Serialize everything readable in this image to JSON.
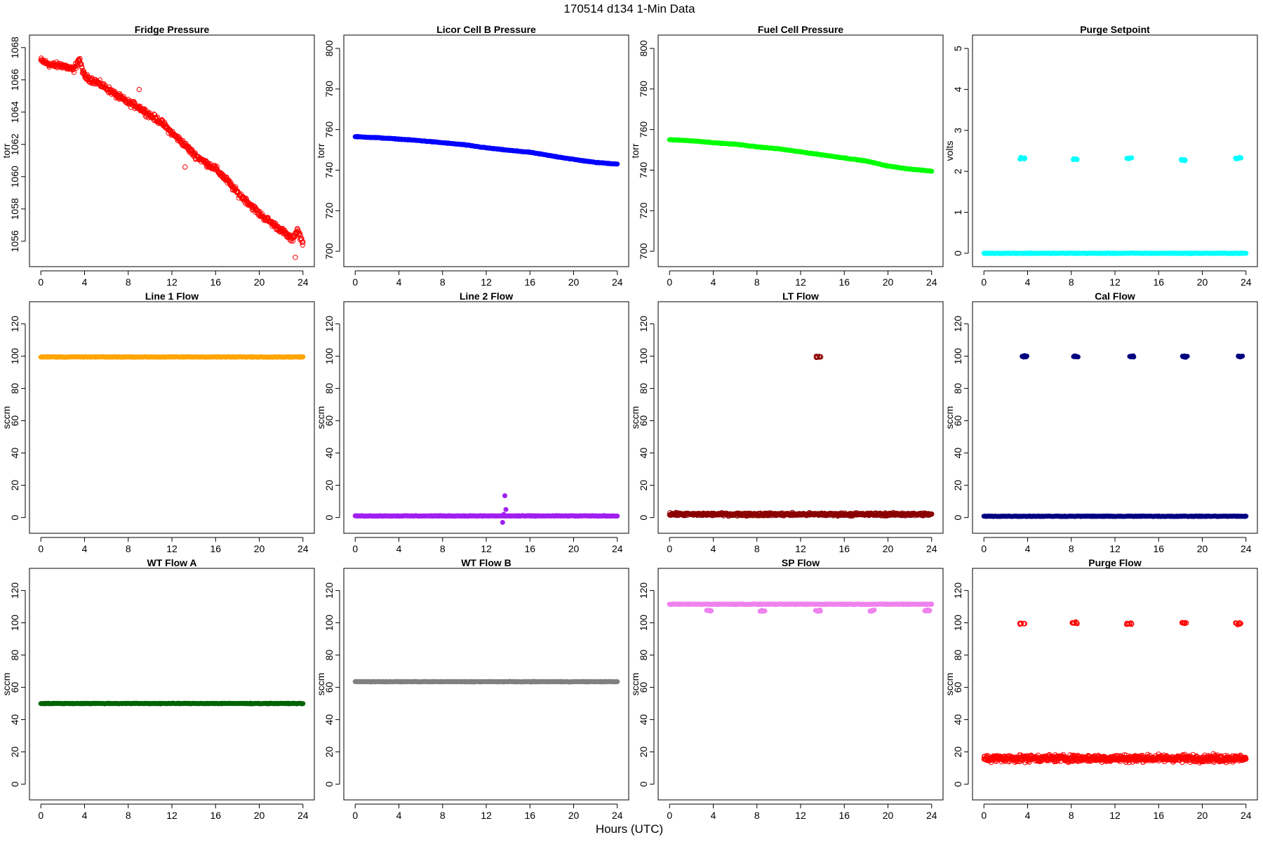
{
  "figure": {
    "title": "170514   d134   1-Min Data",
    "xlabel": "Hours (UTC)"
  },
  "chart_data": [
    {
      "type": "scatter",
      "title": "Fridge Pressure",
      "ylabel": "torr",
      "xlim": [
        0,
        24
      ],
      "ylim": [
        1055,
        1068.2
      ],
      "xticks": [
        0,
        4,
        8,
        12,
        16,
        20,
        24
      ],
      "yticks": [
        1056,
        1058,
        1060,
        1062,
        1064,
        1066,
        1068
      ],
      "color": "#ff0000",
      "marker": "open",
      "series": [
        {
          "x": [
            0,
            1,
            2,
            3,
            3.5,
            4,
            5,
            6,
            7,
            8,
            9,
            10,
            11,
            12,
            13,
            14,
            15,
            16,
            17,
            18,
            19,
            20,
            21,
            22,
            23,
            23.5,
            24
          ],
          "values": [
            1067.2,
            1066.9,
            1066.9,
            1066.6,
            1067.3,
            1066.2,
            1065.9,
            1065.5,
            1065.0,
            1064.6,
            1064.3,
            1063.8,
            1063.4,
            1062.7,
            1062.1,
            1061.4,
            1060.9,
            1060.5,
            1059.8,
            1059.0,
            1058.4,
            1057.7,
            1057.2,
            1056.7,
            1056.1,
            1056.7,
            1055.9
          ]
        }
      ],
      "outliers": [
        [
          23.3,
          1055.0
        ],
        [
          13.2,
          1060.6
        ],
        [
          9.0,
          1065.4
        ]
      ]
    },
    {
      "type": "scatter",
      "title": "Licor Cell B Pressure",
      "ylabel": "torr",
      "xlim": [
        0,
        24
      ],
      "ylim": [
        697,
        802
      ],
      "xticks": [
        0,
        4,
        8,
        12,
        16,
        20,
        24
      ],
      "yticks": [
        700,
        720,
        740,
        760,
        780,
        800
      ],
      "color": "#0000ff",
      "marker": "filled",
      "series": [
        {
          "x": [
            0,
            2,
            4,
            6,
            8,
            10,
            12,
            14,
            16,
            18,
            20,
            22,
            24
          ],
          "values": [
            756.5,
            756.0,
            755.3,
            754.5,
            753.5,
            752.5,
            751.0,
            749.8,
            748.8,
            747.0,
            745.3,
            743.8,
            743.0
          ]
        }
      ]
    },
    {
      "type": "scatter",
      "title": "Fuel Cell Pressure",
      "ylabel": "torr",
      "xlim": [
        0,
        24
      ],
      "ylim": [
        697,
        802
      ],
      "xticks": [
        0,
        4,
        8,
        12,
        16,
        20,
        24
      ],
      "yticks": [
        700,
        720,
        740,
        760,
        780,
        800
      ],
      "color": "#00ff00",
      "marker": "filled",
      "series": [
        {
          "x": [
            0,
            2,
            4,
            6,
            8,
            10,
            12,
            14,
            16,
            18,
            20,
            22,
            24
          ],
          "values": [
            755.0,
            754.5,
            753.5,
            752.8,
            751.5,
            750.5,
            749.0,
            747.5,
            746.0,
            744.5,
            742.0,
            740.5,
            739.5
          ]
        }
      ]
    },
    {
      "type": "scatter",
      "title": "Purge Setpoint",
      "ylabel": "volts",
      "xlim": [
        0,
        24
      ],
      "ylim": [
        -0.1,
        5.1
      ],
      "xticks": [
        0,
        4,
        8,
        12,
        16,
        20,
        24
      ],
      "yticks": [
        0,
        1,
        2,
        3,
        4,
        5
      ],
      "color": "#00ffff",
      "marker": "filled",
      "series": [
        {
          "x": [
            0,
            24
          ],
          "values": [
            0,
            0
          ]
        }
      ],
      "clusters": [
        [
          3.5,
          2.32
        ],
        [
          8.3,
          2.3
        ],
        [
          13.3,
          2.32
        ],
        [
          18.3,
          2.28
        ],
        [
          23.3,
          2.32
        ]
      ]
    },
    {
      "type": "scatter",
      "title": "Line 1 Flow",
      "ylabel": "sccm",
      "xlim": [
        0,
        24
      ],
      "ylim": [
        -4,
        128
      ],
      "xticks": [
        0,
        4,
        8,
        12,
        16,
        20,
        24
      ],
      "yticks": [
        0,
        20,
        40,
        60,
        80,
        100,
        120
      ],
      "color": "#ffa500",
      "marker": "filled",
      "series": [
        {
          "x": [
            0,
            24
          ],
          "values": [
            99.5,
            99.5
          ]
        }
      ]
    },
    {
      "type": "scatter",
      "title": "Line 2 Flow",
      "ylabel": "sccm",
      "xlim": [
        0,
        24
      ],
      "ylim": [
        -4,
        128
      ],
      "xticks": [
        0,
        4,
        8,
        12,
        16,
        20,
        24
      ],
      "yticks": [
        0,
        20,
        40,
        60,
        80,
        100,
        120
      ],
      "color": "#a020f0",
      "marker": "filled",
      "series": [
        {
          "x": [
            0,
            24
          ],
          "values": [
            1,
            1
          ]
        }
      ],
      "outliers": [
        [
          13.7,
          13.5
        ],
        [
          13.8,
          5
        ],
        [
          13.6,
          2
        ],
        [
          13.5,
          -3
        ]
      ]
    },
    {
      "type": "scatter",
      "title": "LT Flow",
      "ylabel": "sccm",
      "xlim": [
        0,
        24
      ],
      "ylim": [
        -4,
        128
      ],
      "xticks": [
        0,
        4,
        8,
        12,
        16,
        20,
        24
      ],
      "yticks": [
        0,
        20,
        40,
        60,
        80,
        100,
        120
      ],
      "color": "#8b0000",
      "marker": "open-dense",
      "series": [
        {
          "x": [
            0,
            24
          ],
          "values": [
            2,
            2
          ]
        }
      ],
      "clusters": [
        [
          13.6,
          99.5
        ]
      ]
    },
    {
      "type": "scatter",
      "title": "Cal Flow",
      "ylabel": "sccm",
      "xlim": [
        0,
        24
      ],
      "ylim": [
        -4,
        128
      ],
      "xticks": [
        0,
        4,
        8,
        12,
        16,
        20,
        24
      ],
      "yticks": [
        0,
        20,
        40,
        60,
        80,
        100,
        120
      ],
      "color": "#000080",
      "marker": "filled",
      "series": [
        {
          "x": [
            0,
            24
          ],
          "values": [
            0.8,
            0.8
          ]
        }
      ],
      "clusters": [
        [
          3.7,
          99.8
        ],
        [
          8.4,
          99.8
        ],
        [
          13.5,
          99.8
        ],
        [
          18.4,
          99.8
        ],
        [
          23.5,
          99.8
        ]
      ]
    },
    {
      "type": "scatter",
      "title": "WT Flow A",
      "ylabel": "sccm",
      "xlim": [
        0,
        24
      ],
      "ylim": [
        -4,
        128
      ],
      "xticks": [
        0,
        4,
        8,
        12,
        16,
        20,
        24
      ],
      "yticks": [
        0,
        20,
        40,
        60,
        80,
        100,
        120
      ],
      "color": "#006400",
      "marker": "filled",
      "series": [
        {
          "x": [
            0,
            24
          ],
          "values": [
            50,
            50
          ]
        }
      ]
    },
    {
      "type": "scatter",
      "title": "WT Flow B",
      "ylabel": "sccm",
      "xlim": [
        0,
        24
      ],
      "ylim": [
        -4,
        128
      ],
      "xticks": [
        0,
        4,
        8,
        12,
        16,
        20,
        24
      ],
      "yticks": [
        0,
        20,
        40,
        60,
        80,
        100,
        120
      ],
      "color": "#808080",
      "marker": "filled",
      "series": [
        {
          "x": [
            0,
            24
          ],
          "values": [
            63.5,
            63.5
          ]
        }
      ]
    },
    {
      "type": "scatter",
      "title": "SP Flow",
      "ylabel": "sccm",
      "xlim": [
        0,
        24
      ],
      "ylim": [
        -4,
        128
      ],
      "xticks": [
        0,
        4,
        8,
        12,
        16,
        20,
        24
      ],
      "yticks": [
        0,
        20,
        40,
        60,
        80,
        100,
        120
      ],
      "color": "#ee82ee",
      "marker": "filled",
      "series": [
        {
          "x": [
            0,
            24
          ],
          "values": [
            111.5,
            111.5
          ]
        }
      ],
      "clusters": [
        [
          3.6,
          107.5
        ],
        [
          8.5,
          107.5
        ],
        [
          13.6,
          107.5
        ],
        [
          18.5,
          107.5
        ],
        [
          23.6,
          107.5
        ]
      ]
    },
    {
      "type": "scatter",
      "title": "Purge Flow",
      "ylabel": "sccm",
      "xlim": [
        0,
        24
      ],
      "ylim": [
        -4,
        128
      ],
      "xticks": [
        0,
        4,
        8,
        12,
        16,
        20,
        24
      ],
      "yticks": [
        0,
        20,
        40,
        60,
        80,
        100,
        120
      ],
      "color": "#ff0000",
      "marker": "open",
      "series": [
        {
          "x": [
            0,
            24
          ],
          "values": [
            16,
            16
          ]
        }
      ],
      "clusters": [
        [
          3.5,
          99.5
        ],
        [
          8.3,
          100
        ],
        [
          13.3,
          99.5
        ],
        [
          18.3,
          100
        ],
        [
          23.3,
          99.5
        ]
      ]
    }
  ]
}
